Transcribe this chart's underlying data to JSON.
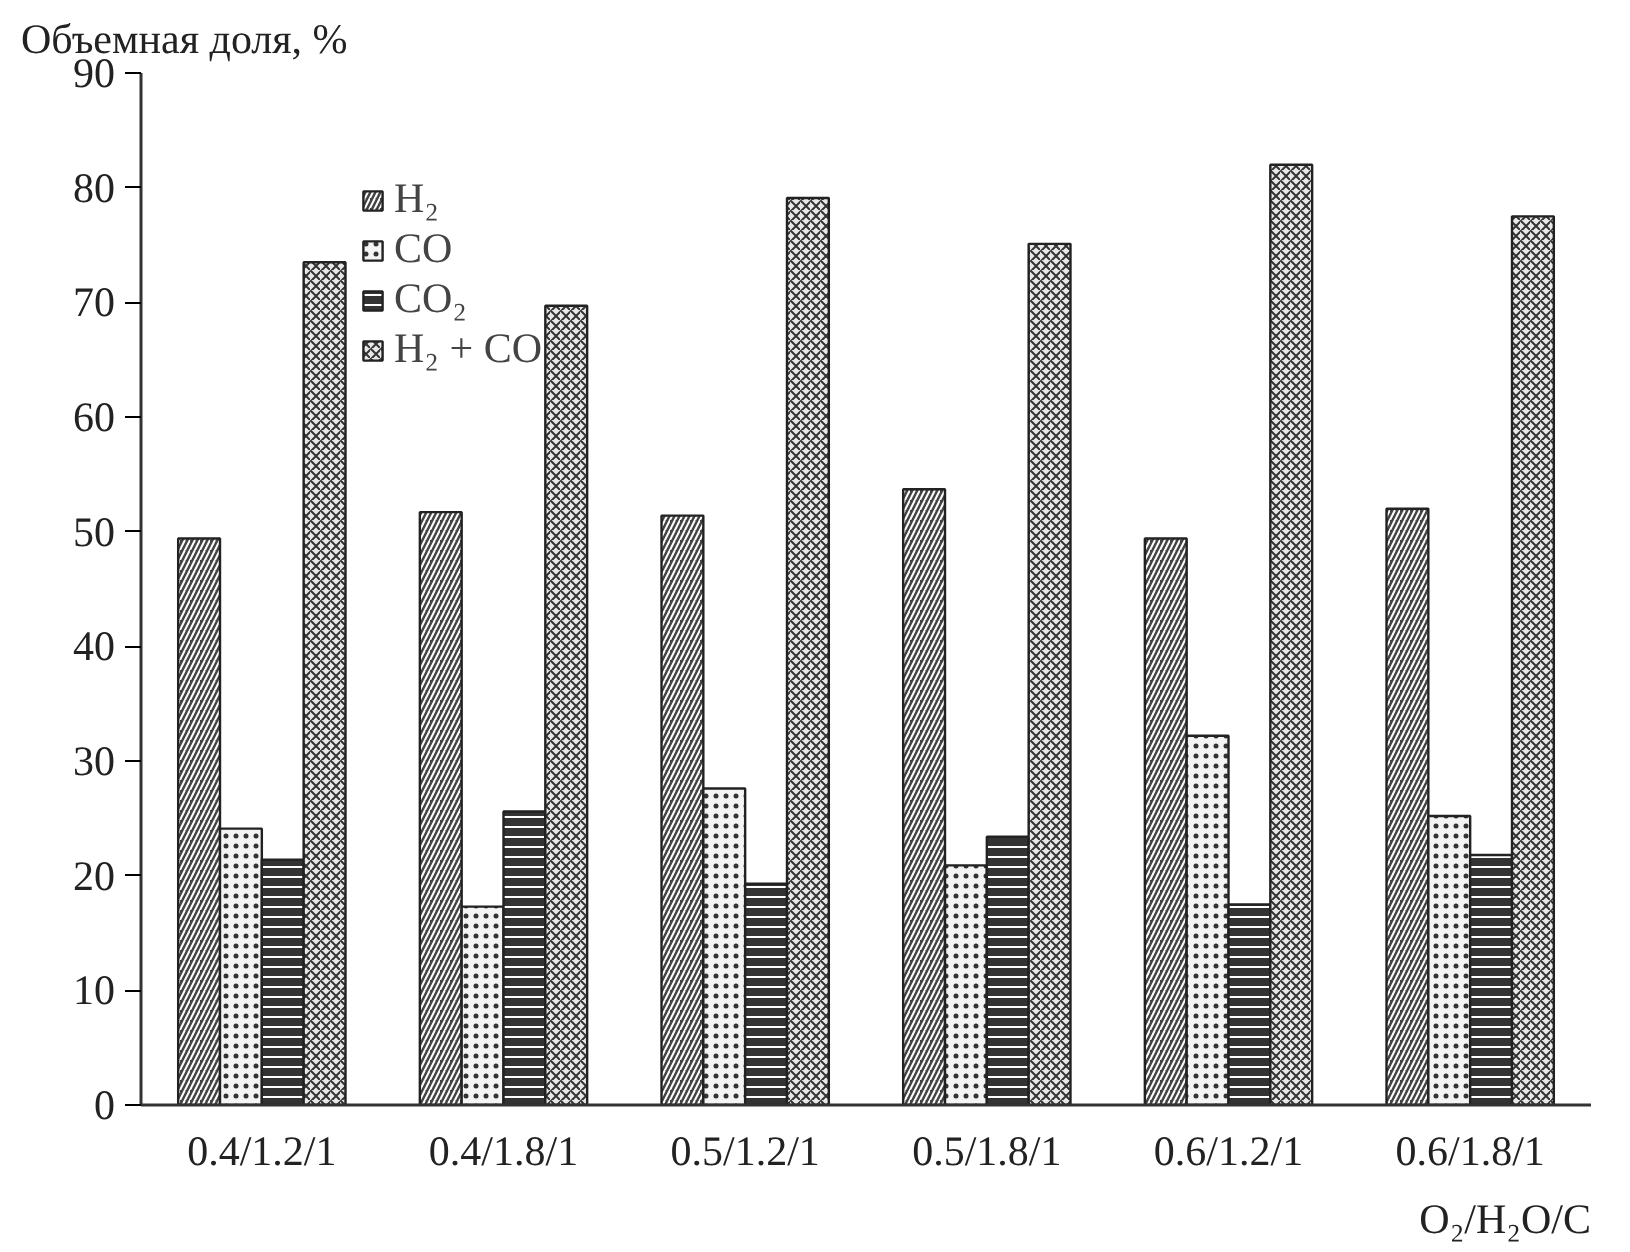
{
  "chart_data": {
    "type": "bar",
    "ylabel": "Объемная доля, %",
    "xlabel": "O₂/H₂O/C",
    "categories": [
      "0.4/1.2/1",
      "0.4/1.8/1",
      "0.5/1.2/1",
      "0.5/1.8/1",
      "0.6/1.2/1",
      "0.6/1.8/1"
    ],
    "series": [
      {
        "name": "H₂",
        "color": "#444444",
        "values": [
          49.4,
          51.7,
          51.4,
          53.7,
          49.4,
          52.0
        ]
      },
      {
        "name": "CO",
        "color": "#f4f4f4",
        "values": [
          24.1,
          17.3,
          27.6,
          20.9,
          32.2,
          25.2
        ]
      },
      {
        "name": "CO₂",
        "color": "#333333",
        "values": [
          21.4,
          25.6,
          19.3,
          23.4,
          17.5,
          21.8
        ]
      },
      {
        "name": "H₂ + CO",
        "color": "#e8e8e8",
        "values": [
          73.5,
          69.7,
          79.1,
          75.1,
          82.0,
          77.5
        ]
      }
    ],
    "ylim": [
      0,
      90
    ],
    "yticks": [
      0,
      10,
      20,
      30,
      40,
      50,
      60,
      70,
      80,
      90
    ],
    "grid": false,
    "legend": "top left"
  }
}
